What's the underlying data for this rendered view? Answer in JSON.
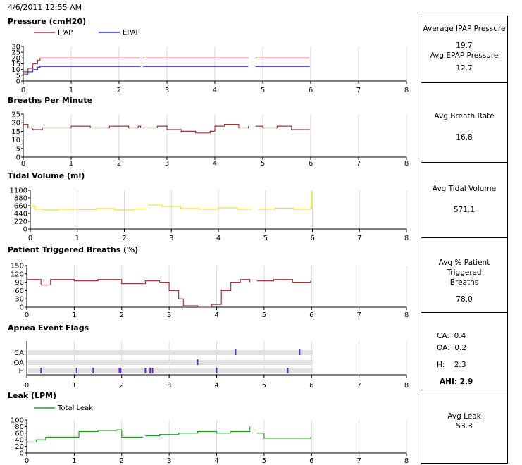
{
  "timestamp": "4/6/2011 12:55 AM",
  "colors": {
    "ipap": "#9b3a3a",
    "epap": "#3a3ae0",
    "tidal": "#f0e040",
    "leak": "#2a9a2a",
    "grid": "#d8d8d8",
    "flagbar": "#e2e2e2",
    "flagmark": "#6a32c8"
  },
  "chart_data": [
    {
      "type": "line",
      "title": "Pressure (cmH20)",
      "xlim": [
        0,
        8
      ],
      "ylim": [
        0,
        30
      ],
      "x_ticks": [
        "0",
        "1",
        "2",
        "3",
        "4",
        "5",
        "6",
        "7",
        "8"
      ],
      "y_ticks": [
        "30",
        "25",
        "20",
        "15",
        "10",
        "5",
        "0"
      ],
      "series": [
        {
          "name": "IPAP",
          "color": "#9b3a3a",
          "segments": [
            [
              [
                0,
                8
              ],
              [
                0.1,
                11
              ],
              [
                0.2,
                15
              ],
              [
                0.3,
                18
              ],
              [
                0.35,
                20
              ],
              [
                2.45,
                20
              ]
            ],
            [
              [
                2.5,
                20
              ],
              [
                4.7,
                20
              ]
            ],
            [
              [
                4.85,
                20
              ],
              [
                5.98,
                20
              ]
            ]
          ]
        },
        {
          "name": "EPAP",
          "color": "#3a3ae0",
          "segments": [
            [
              [
                0,
                6
              ],
              [
                0.1,
                8
              ],
              [
                0.2,
                10
              ],
              [
                0.3,
                12
              ],
              [
                0.35,
                12.7
              ],
              [
                2.45,
                12.7
              ]
            ],
            [
              [
                2.5,
                12.7
              ],
              [
                4.7,
                12.7
              ]
            ],
            [
              [
                4.85,
                12.7
              ],
              [
                5.98,
                12.7
              ]
            ]
          ]
        }
      ]
    },
    {
      "type": "line",
      "title": "Breaths Per Minute",
      "xlim": [
        0,
        8
      ],
      "ylim": [
        0,
        25
      ],
      "x_ticks": [
        "0",
        "1",
        "2",
        "3",
        "4",
        "5",
        "6",
        "7",
        "8"
      ],
      "y_ticks": [
        "25",
        "20",
        "15",
        "10",
        "5",
        "0"
      ],
      "series": [
        {
          "name": "",
          "color": "#9b3a3a",
          "segments": [
            [
              [
                0,
                19
              ],
              [
                0.1,
                17
              ],
              [
                0.2,
                16
              ],
              [
                0.4,
                17
              ],
              [
                0.8,
                17
              ],
              [
                1,
                18
              ],
              [
                1.4,
                17
              ],
              [
                1.8,
                18
              ],
              [
                2.2,
                17
              ],
              [
                2.4,
                18
              ],
              [
                2.45,
                17
              ]
            ],
            [
              [
                2.5,
                17
              ],
              [
                2.8,
                18
              ],
              [
                3,
                16
              ],
              [
                3.3,
                15
              ],
              [
                3.6,
                14
              ],
              [
                3.9,
                15
              ],
              [
                4,
                18
              ],
              [
                4.2,
                19
              ],
              [
                4.5,
                17
              ],
              [
                4.7,
                18
              ]
            ],
            [
              [
                4.85,
                18
              ],
              [
                5,
                17
              ],
              [
                5.3,
                18
              ],
              [
                5.6,
                16
              ],
              [
                5.98,
                16
              ]
            ]
          ]
        }
      ]
    },
    {
      "type": "line",
      "title": "Tidal Volume (ml)",
      "xlim": [
        0,
        8
      ],
      "ylim": [
        0,
        1100
      ],
      "x_ticks": [
        "0",
        "1",
        "2",
        "3",
        "4",
        "5",
        "6",
        "7",
        "8"
      ],
      "y_ticks": [
        "1100",
        "880",
        "660",
        "440",
        "220",
        "0"
      ],
      "series": [
        {
          "name": "",
          "color": "#f0e040",
          "segments": [
            [
              [
                0,
                650
              ],
              [
                0.1,
                560
              ],
              [
                0.3,
                540
              ],
              [
                0.6,
                560
              ],
              [
                1,
                550
              ],
              [
                1.4,
                580
              ],
              [
                1.8,
                540
              ],
              [
                2.2,
                570
              ],
              [
                2.45,
                560
              ]
            ],
            [
              [
                2.5,
                680
              ],
              [
                2.8,
                640
              ],
              [
                3.2,
                580
              ],
              [
                3.6,
                560
              ],
              [
                4,
                600
              ],
              [
                4.4,
                560
              ],
              [
                4.7,
                580
              ]
            ],
            [
              [
                4.85,
                560
              ],
              [
                5.2,
                590
              ],
              [
                5.6,
                560
              ],
              [
                5.95,
                580
              ],
              [
                5.98,
                1080
              ]
            ]
          ]
        }
      ]
    },
    {
      "type": "line",
      "title": "Patient Triggered Breaths (%)",
      "xlim": [
        0,
        8
      ],
      "ylim": [
        0,
        150
      ],
      "x_ticks": [
        "0",
        "1",
        "2",
        "3",
        "4",
        "5",
        "6",
        "7",
        "8"
      ],
      "y_ticks": [
        "150",
        "120",
        "90",
        "60",
        "30",
        "0"
      ],
      "series": [
        {
          "name": "",
          "color": "#9b3a3a",
          "segments": [
            [
              [
                0,
                100
              ],
              [
                0.3,
                80
              ],
              [
                0.5,
                100
              ],
              [
                1,
                95
              ],
              [
                1.5,
                100
              ],
              [
                2,
                85
              ],
              [
                2.5,
                95
              ],
              [
                2.8,
                90
              ],
              [
                3,
                60
              ],
              [
                3.2,
                30
              ],
              [
                3.3,
                5
              ],
              [
                3.6,
                0
              ],
              [
                3.9,
                10
              ],
              [
                4.1,
                60
              ],
              [
                4.3,
                90
              ],
              [
                4.5,
                100
              ],
              [
                4.7,
                90
              ]
            ],
            [
              [
                4.85,
                95
              ],
              [
                5.2,
                100
              ],
              [
                5.6,
                90
              ],
              [
                5.98,
                95
              ]
            ]
          ]
        }
      ]
    },
    {
      "type": "scatter",
      "title": "Apnea Event Flags",
      "xlim": [
        0,
        8
      ],
      "x_ticks": [
        "0",
        "1",
        "2",
        "3",
        "4",
        "5",
        "6",
        "7",
        "8"
      ],
      "rows": [
        "CA",
        "OA",
        "H"
      ],
      "events": {
        "CA": [
          4.4,
          5.75
        ],
        "OA": [
          3.6
        ],
        "H": [
          0.3,
          1.05,
          1.4,
          1.95,
          1.98,
          2.5,
          2.6,
          2.65,
          4.0,
          5.5
        ]
      }
    },
    {
      "type": "line",
      "title": "Leak (LPM)",
      "xlim": [
        0,
        8
      ],
      "ylim": [
        0,
        100
      ],
      "x_ticks": [
        "0",
        "1",
        "2",
        "3",
        "4",
        "5",
        "6",
        "7",
        "8"
      ],
      "y_ticks": [
        "100",
        "80",
        "60",
        "40",
        "20",
        "0"
      ],
      "series": [
        {
          "name": "Total Leak",
          "color": "#2a9a2a",
          "segments": [
            [
              [
                0,
                33
              ],
              [
                0.2,
                40
              ],
              [
                0.4,
                48
              ],
              [
                1,
                48
              ],
              [
                1.1,
                65
              ],
              [
                1.5,
                68
              ],
              [
                1.9,
                70
              ],
              [
                2,
                48
              ],
              [
                2.45,
                48
              ]
            ],
            [
              [
                2.5,
                52
              ],
              [
                2.8,
                56
              ],
              [
                3.2,
                60
              ],
              [
                3.6,
                65
              ],
              [
                4,
                60
              ],
              [
                4.3,
                65
              ],
              [
                4.7,
                80
              ]
            ],
            [
              [
                4.85,
                60
              ],
              [
                5,
                45
              ],
              [
                5.4,
                45
              ],
              [
                5.98,
                48
              ]
            ]
          ]
        }
      ]
    }
  ],
  "summary": {
    "pressure": {
      "label1": "Average IPAP Pressure",
      "value1": "19.7",
      "label2": "Avg EPAP Pressure",
      "value2": "12.7"
    },
    "bpm": {
      "label": "Avg Breath Rate",
      "value": "16.8"
    },
    "tidal": {
      "label": "Avg Tidal Volume",
      "value": "571.1"
    },
    "ptb": {
      "label": "Avg % Patient Triggered Breaths",
      "value": "78.0"
    },
    "apnea": {
      "ca_label": "CA:",
      "ca": "0.4",
      "oa_label": "OA:",
      "oa": "0.2",
      "h_label": "H:",
      "h": "2.3",
      "ahi_label": "AHI:",
      "ahi": "2.9"
    },
    "leak": {
      "label": "Avg Leak",
      "value": "53.3"
    }
  }
}
